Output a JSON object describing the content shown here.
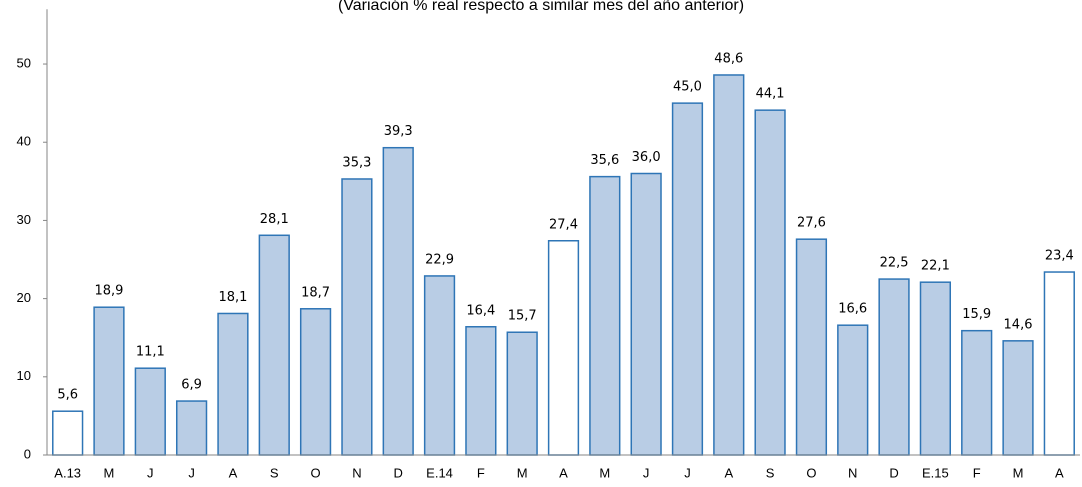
{
  "chart_data": {
    "type": "bar",
    "subtitle": "(Variación % real respecto a similar mes del año anterior)",
    "categories": [
      "A.13",
      "M",
      "J",
      "J",
      "A",
      "S",
      "O",
      "N",
      "D",
      "E.14",
      "F",
      "M",
      "A",
      "M",
      "J",
      "J",
      "A",
      "S",
      "O",
      "N",
      "D",
      "E.15",
      "F",
      "M",
      "A"
    ],
    "values": [
      5.6,
      18.9,
      11.1,
      6.9,
      18.1,
      28.1,
      18.7,
      35.3,
      39.3,
      22.9,
      16.4,
      15.7,
      27.4,
      35.6,
      36.0,
      45.0,
      48.6,
      44.1,
      27.6,
      16.6,
      22.5,
      22.1,
      15.9,
      14.6,
      23.4
    ],
    "value_labels": [
      "5,6",
      "18,9",
      "11,1",
      "6,9",
      "18,1",
      "28,1",
      "18,7",
      "35,3",
      "39,3",
      "22,9",
      "16,4",
      "15,7",
      "27,4",
      "35,6",
      "36,0",
      "45,0",
      "48,6",
      "44,1",
      "27,6",
      "16,6",
      "22,5",
      "22,1",
      "15,9",
      "14,6",
      "23,4"
    ],
    "colors": [
      "#ffffff",
      "#b9cde5",
      "#b9cde5",
      "#b9cde5",
      "#b9cde5",
      "#b9cde5",
      "#b9cde5",
      "#b9cde5",
      "#b9cde5",
      "#b9cde5",
      "#b9cde5",
      "#b9cde5",
      "#ffffff",
      "#b9cde5",
      "#b9cde5",
      "#b9cde5",
      "#b9cde5",
      "#b9cde5",
      "#b9cde5",
      "#b9cde5",
      "#b9cde5",
      "#b9cde5",
      "#b9cde5",
      "#b9cde5",
      "#ffffff"
    ],
    "edge_color": "#2e75b6",
    "ylim": [
      0,
      57
    ],
    "yticks": [
      0,
      10,
      20,
      30,
      40,
      50
    ],
    "grid": false
  }
}
